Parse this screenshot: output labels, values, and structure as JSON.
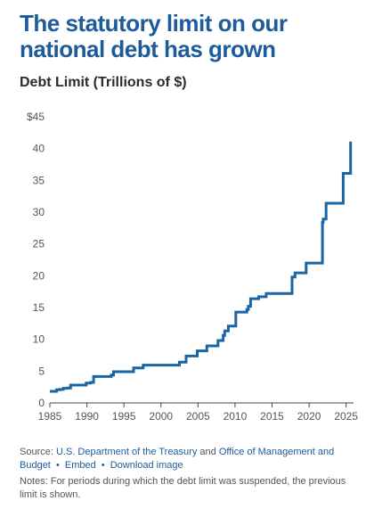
{
  "title": "The statutory limit on our national debt has grown",
  "subtitle": "Debt Limit (Trillions of $)",
  "colors": {
    "title": "#1d5b9a",
    "series": "#1a65a3",
    "link": "#1d5b9a"
  },
  "footer": {
    "source_label": "Source:",
    "source_link_1": "U.S. Department of the Treasury",
    "and": "and",
    "source_link_2": "Office of Management and Budget",
    "embed": "Embed",
    "download": "Download image",
    "notes": "Notes: For periods during which the debt limit was suspended, the previous limit is shown."
  },
  "chart_data": {
    "type": "line",
    "step": true,
    "xlim": [
      1985,
      2026
    ],
    "ylim": [
      0,
      45
    ],
    "x_ticks": [
      "1985",
      "1990",
      "1995",
      "2000",
      "2005",
      "2010",
      "2015",
      "2020",
      "2025"
    ],
    "y_ticks": [
      "0",
      "5",
      "10",
      "15",
      "20",
      "25",
      "30",
      "35",
      "40",
      "$45"
    ],
    "grid": false,
    "series": [
      {
        "x": [
          1985,
          1985.9,
          1986.3,
          1986.8,
          1987.4,
          1987.8,
          1989.9,
          1990.5,
          1990.9,
          1993.3,
          1993.6,
          1996.3,
          1997.6,
          2002.5,
          2003.4,
          2004.9,
          2006.2,
          2007.7,
          2008.4,
          2008.6,
          2009.1,
          2010.1,
          2011.6,
          2011.8,
          2012.1,
          2013.2,
          2014.2,
          2017.7,
          2018.1,
          2019.6,
          2021.8,
          2021.9,
          2022.3,
          2024.6,
          2025.6,
          2025.6
        ],
        "y": [
          1.82,
          2.08,
          2.11,
          2.3,
          2.35,
          2.8,
          3.12,
          3.23,
          4.15,
          4.37,
          4.9,
          5.5,
          5.95,
          6.4,
          7.38,
          8.18,
          8.97,
          9.82,
          10.62,
          11.32,
          12.1,
          14.29,
          14.69,
          15.19,
          16.39,
          16.7,
          17.2,
          19.81,
          20.46,
          21.99,
          28.4,
          28.9,
          31.4,
          36.1,
          36.1,
          41.1
        ]
      }
    ]
  }
}
